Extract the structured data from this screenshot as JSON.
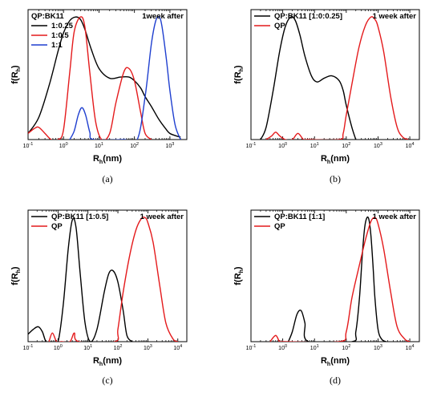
{
  "chart_data": [
    {
      "type": "line",
      "panel_label": "(a)",
      "xlabel": "R",
      "xlabel_sub": "h",
      "xlabel_unit": "(nm)",
      "ylabel": "f(R",
      "ylabel_sub": "h",
      "ylabel_close": ")",
      "x_scale": "log",
      "xlim": [
        0.1,
        3000
      ],
      "ylim": [
        0,
        1.06
      ],
      "y_ticks_shown": false,
      "x_tick_labels": [
        "10",
        "10",
        "10",
        "10",
        "10"
      ],
      "x_tick_exponents": [
        "-1",
        "0",
        "1",
        "2",
        "3"
      ],
      "x_tick_values": [
        0.1,
        1,
        10,
        100,
        1000
      ],
      "legend_title": "QP:BK11",
      "annotation": "1week after",
      "series": [
        {
          "name": "1:0.25",
          "color": "#000000",
          "x": [
            0.1,
            0.2,
            0.4,
            0.7,
            1.0,
            1.5,
            2.2,
            3.0,
            4.0,
            6.0,
            10,
            20,
            40,
            70,
            100,
            150,
            200,
            300,
            500,
            800,
            1000,
            1500,
            2000
          ],
          "y": [
            0.05,
            0.18,
            0.45,
            0.72,
            0.87,
            0.97,
            1.0,
            0.98,
            0.9,
            0.74,
            0.58,
            0.5,
            0.51,
            0.51,
            0.48,
            0.42,
            0.35,
            0.27,
            0.16,
            0.08,
            0.05,
            0.03,
            0.02
          ]
        },
        {
          "name": "1:0.5",
          "color": "#e41a1c",
          "x": [
            0.1,
            0.15,
            0.2,
            0.3,
            0.45,
            0.7,
            1.0,
            1.5,
            2.0,
            3.0,
            4.0,
            5.5,
            8,
            12,
            20,
            30,
            50,
            70,
            100,
            150,
            200,
            300
          ],
          "y": [
            0.05,
            0.09,
            0.1,
            0.05,
            0.0,
            0.0,
            0.08,
            0.55,
            0.88,
            1.0,
            0.92,
            0.55,
            0.15,
            0.0,
            0.05,
            0.3,
            0.55,
            0.58,
            0.48,
            0.22,
            0.05,
            0.0
          ]
        },
        {
          "name": "1:1",
          "color": "#1f3fcf",
          "x": [
            1.5,
            2.0,
            2.6,
            3.3,
            4.2,
            5.5,
            7,
            50,
            120,
            200,
            300,
            400,
            500,
            600,
            800,
            1000,
            1400,
            2000
          ],
          "y": [
            0.0,
            0.07,
            0.2,
            0.26,
            0.2,
            0.06,
            0.0,
            0.0,
            0.0,
            0.35,
            0.78,
            0.97,
            1.0,
            0.92,
            0.65,
            0.4,
            0.12,
            0.0
          ]
        }
      ]
    },
    {
      "type": "line",
      "panel_label": "(b)",
      "xlabel": "R",
      "xlabel_sub": "h",
      "xlabel_unit": "(nm)",
      "ylabel": "f(R",
      "ylabel_sub": "h",
      "ylabel_close": ")",
      "x_scale": "log",
      "xlim": [
        0.1,
        20000
      ],
      "ylim": [
        0,
        1.06
      ],
      "y_ticks_shown": false,
      "x_tick_labels": [
        "10",
        "10",
        "10",
        "10",
        "10",
        "10"
      ],
      "x_tick_exponents": [
        "-1",
        "0",
        "1",
        "2",
        "3",
        "4"
      ],
      "x_tick_values": [
        0.1,
        1,
        10,
        100,
        1000,
        10000
      ],
      "legend_title": "",
      "annotation": "1 week after",
      "series": [
        {
          "name": "QP:BK11 [1:0:0.25]",
          "color": "#000000",
          "x": [
            0.2,
            0.3,
            0.5,
            0.8,
            1.2,
            1.8,
            2.5,
            3.5,
            5,
            8,
            12,
            20,
            35,
            60,
            80,
            100,
            150,
            200
          ],
          "y": [
            0.0,
            0.1,
            0.4,
            0.72,
            0.92,
            1.0,
            0.97,
            0.85,
            0.68,
            0.52,
            0.47,
            0.5,
            0.52,
            0.48,
            0.4,
            0.28,
            0.1,
            0.0
          ]
        },
        {
          "name": "QP",
          "color": "#e41a1c",
          "x": [
            0.3,
            0.45,
            0.6,
            0.8,
            1.2,
            2.0,
            3.0,
            4.5,
            6,
            60,
            80,
            100,
            150,
            250,
            400,
            600,
            800,
            1000,
            1500,
            2500,
            4000,
            6000,
            9000
          ],
          "y": [
            0.0,
            0.03,
            0.06,
            0.03,
            0.0,
            0.0,
            0.05,
            0.0,
            0.0,
            0.0,
            0.05,
            0.2,
            0.45,
            0.75,
            0.93,
            1.0,
            0.98,
            0.92,
            0.72,
            0.35,
            0.1,
            0.02,
            0.0
          ]
        }
      ]
    },
    {
      "type": "line",
      "panel_label": "(c)",
      "xlabel": "R",
      "xlabel_sub": "h",
      "xlabel_unit": "(nm)",
      "ylabel": "f(R",
      "ylabel_sub": "h",
      "ylabel_close": ")",
      "x_scale": "log",
      "xlim": [
        0.1,
        20000
      ],
      "ylim": [
        0,
        1.06
      ],
      "y_ticks_shown": false,
      "x_tick_labels": [
        "10",
        "10",
        "10",
        "10",
        "10",
        "10"
      ],
      "x_tick_exponents": [
        "-1",
        "0",
        "1",
        "2",
        "3",
        "4"
      ],
      "x_tick_values": [
        0.1,
        1,
        10,
        100,
        1000,
        10000
      ],
      "legend_title": "",
      "annotation": "1 week after",
      "series": [
        {
          "name": "QP:BK11 [1:0.5]",
          "color": "#000000",
          "x": [
            0.1,
            0.15,
            0.22,
            0.3,
            0.4,
            0.6,
            1.0,
            1.5,
            2.2,
            3.0,
            4.0,
            5.5,
            8,
            12,
            20,
            35,
            50,
            70,
            100,
            150,
            200,
            300
          ],
          "y": [
            0.06,
            0.1,
            0.12,
            0.08,
            0.0,
            0.0,
            0.0,
            0.3,
            0.75,
            0.98,
            0.92,
            0.55,
            0.15,
            0.0,
            0.1,
            0.4,
            0.55,
            0.57,
            0.48,
            0.25,
            0.05,
            0.0
          ]
        },
        {
          "name": "QP",
          "color": "#e41a1c",
          "x": [
            0.5,
            0.65,
            0.9,
            1.3,
            2.5,
            3.5,
            5,
            80,
            100,
            150,
            250,
            400,
            600,
            800,
            1000,
            1500,
            2500,
            4000,
            7000,
            10000
          ],
          "y": [
            0.0,
            0.07,
            0.0,
            0.0,
            0.0,
            0.07,
            0.0,
            0.0,
            0.1,
            0.4,
            0.7,
            0.9,
            0.99,
            1.0,
            0.96,
            0.8,
            0.45,
            0.15,
            0.02,
            0.0
          ]
        }
      ]
    },
    {
      "type": "line",
      "panel_label": "(d)",
      "xlabel": "R",
      "xlabel_sub": "h",
      "xlabel_unit": "(nm)",
      "ylabel": "f(R",
      "ylabel_sub": "h",
      "ylabel_close": ")",
      "x_scale": "log",
      "xlim": [
        0.1,
        20000
      ],
      "ylim": [
        0,
        1.06
      ],
      "y_ticks_shown": false,
      "x_tick_labels": [
        "10",
        "10",
        "10",
        "10",
        "10",
        "10"
      ],
      "x_tick_exponents": [
        "-1",
        "0",
        "1",
        "2",
        "3",
        "4"
      ],
      "x_tick_values": [
        0.1,
        1,
        10,
        100,
        1000,
        10000
      ],
      "legend_title": "",
      "annotation": "1 week after",
      "series": [
        {
          "name": "QP:BK11 [1:1]",
          "color": "#000000",
          "x": [
            1.5,
            2.0,
            2.8,
            3.8,
            5,
            6.5,
            150,
            200,
            260,
            320,
            380,
            450,
            520,
            600,
            700,
            800,
            1000,
            1300,
            1800
          ],
          "y": [
            0.0,
            0.08,
            0.22,
            0.25,
            0.15,
            0.0,
            0.0,
            0.08,
            0.35,
            0.7,
            0.92,
            1.0,
            0.98,
            0.85,
            0.6,
            0.35,
            0.1,
            0.02,
            0.0
          ]
        },
        {
          "name": "QP",
          "color": "#e41a1c",
          "x": [
            0.4,
            0.6,
            0.8,
            1.1,
            60,
            100,
            150,
            250,
            400,
            600,
            800,
            1000,
            1500,
            2500,
            4000,
            7000,
            10000
          ],
          "y": [
            0.0,
            0.05,
            0.0,
            0.0,
            0.0,
            0.08,
            0.35,
            0.6,
            0.82,
            0.97,
            1.0,
            0.95,
            0.75,
            0.4,
            0.12,
            0.02,
            0.0
          ]
        }
      ]
    }
  ]
}
